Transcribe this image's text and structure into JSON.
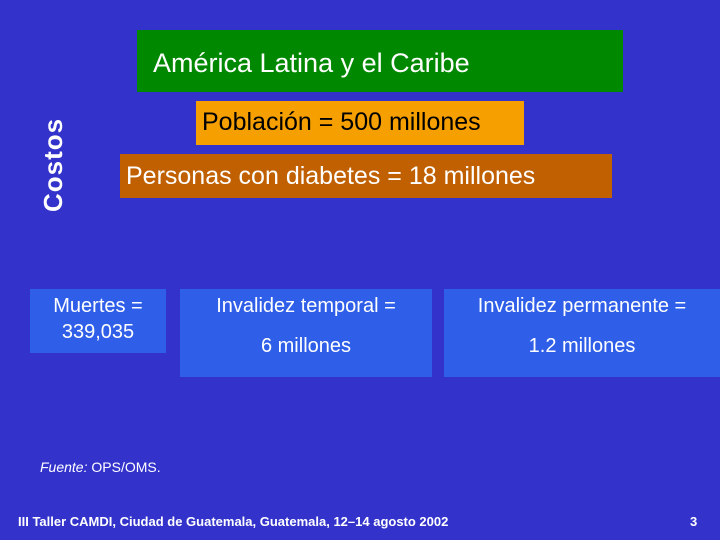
{
  "side_title": "Costos",
  "region": "América Latina y el Caribe",
  "population": "Población = 500 millones",
  "diabetes": "Personas con diabetes = 18  millones",
  "cards": {
    "deaths": {
      "line1": "Muertes =",
      "line2": "339,035"
    },
    "temporary": {
      "line1": "Invalidez temporal =",
      "line2": "6 millones"
    },
    "permanent": {
      "line1": "Invalidez permanente =",
      "line2": "1.2 millones"
    }
  },
  "source": {
    "label": "Fuente:",
    "text": " OPS/OMS."
  },
  "footer": "III Taller CAMDI, Ciudad de Guatemala, Guatemala, 12–14 agosto 2002",
  "page_number": "3",
  "colors": {
    "background": "#3333cc",
    "region_box": "#008800",
    "population_box": "#f5a000",
    "diabetes_box": "#c06000",
    "card": "#2f5fe8"
  }
}
